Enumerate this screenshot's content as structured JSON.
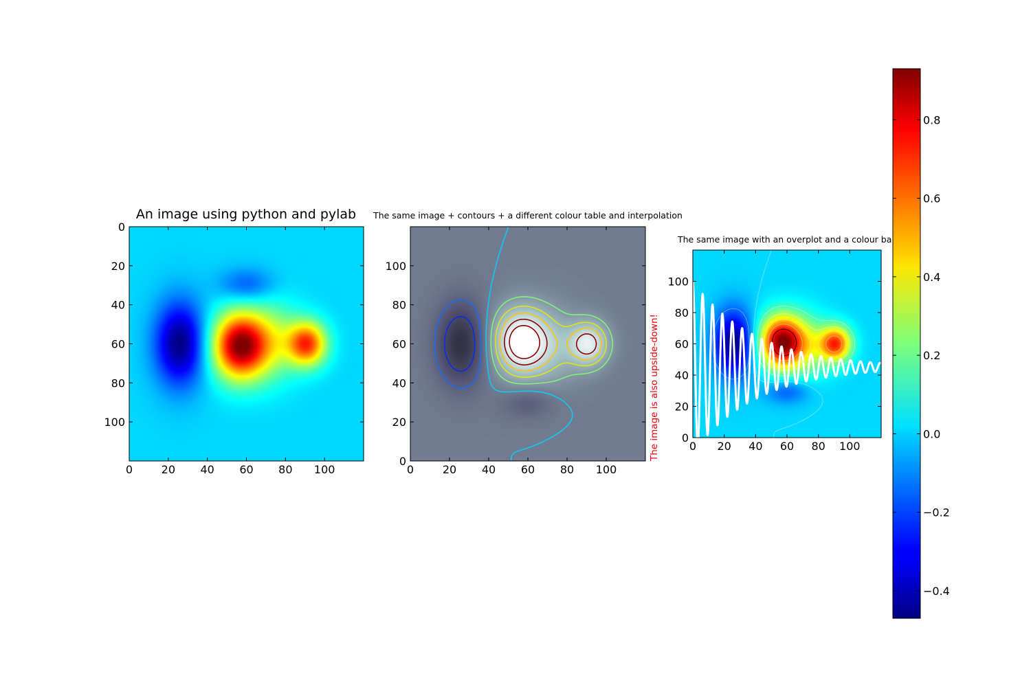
{
  "figure": {
    "background": "#ffffff",
    "note": "The image is also upside-down!",
    "note_color": "#e8000b"
  },
  "chart_data": [
    {
      "type": "heatmap",
      "title": "An image using python and pylab",
      "colormap": "jet",
      "interpolation": "bilinear",
      "origin": "upper",
      "xlim": [
        0,
        120
      ],
      "ylim": [
        120,
        0
      ],
      "xticks": [
        0,
        20,
        40,
        60,
        80,
        100
      ],
      "yticks": [
        0,
        20,
        40,
        60,
        80,
        100
      ],
      "features": [
        {
          "kind": "min",
          "x": 26,
          "y": 60,
          "value": -0.47
        },
        {
          "kind": "min",
          "x": 55,
          "y": 30,
          "value": -0.18
        },
        {
          "kind": "max",
          "x": 57,
          "y": 62,
          "value": 0.93
        },
        {
          "kind": "max",
          "x": 91,
          "y": 60,
          "value": 0.72
        }
      ]
    },
    {
      "type": "heatmap",
      "title": "The same image + contours + a different colour table and interpolation",
      "colormap": "bone",
      "interpolation": "bicubic",
      "origin": "lower",
      "xlim": [
        0,
        120
      ],
      "ylim": [
        0,
        120
      ],
      "xticks": [
        0,
        20,
        40,
        60,
        80,
        100
      ],
      "yticks": [
        0,
        20,
        40,
        60,
        80,
        100
      ],
      "contour_levels": [
        -0.3,
        -0.15,
        0.0,
        0.15,
        0.3,
        0.45,
        0.6,
        0.75
      ],
      "contour_colors": [
        "#0c2de8",
        "#1a6cf5",
        "#11c8f2",
        "#7ef07b",
        "#dce41a",
        "#ffc20a",
        "#8b0000",
        "#8b0000"
      ]
    },
    {
      "type": "heatmap",
      "title": "The same image with an overplot and a colour bar",
      "colormap": "jet",
      "interpolation": "bilinear",
      "origin": "lower",
      "xlim": [
        0,
        120
      ],
      "ylim": [
        0,
        120
      ],
      "xticks": [
        0,
        20,
        40,
        60,
        80,
        100
      ],
      "yticks": [
        0,
        20,
        40,
        60,
        80,
        100
      ],
      "overplot": {
        "type": "line",
        "color": "#ffffff",
        "formula": "y = 45 + 55*cos(x)*exp(-x/40)",
        "x_range": [
          0,
          120
        ]
      },
      "colorbar": {
        "range": [
          -0.47,
          0.93
        ],
        "ticks": [
          -0.4,
          -0.2,
          0.0,
          0.2,
          0.4,
          0.6,
          0.8
        ],
        "tick_labels": [
          "−0.4",
          "−0.2",
          "0.0",
          "0.2",
          "0.4",
          "0.6",
          "0.8"
        ]
      }
    }
  ]
}
